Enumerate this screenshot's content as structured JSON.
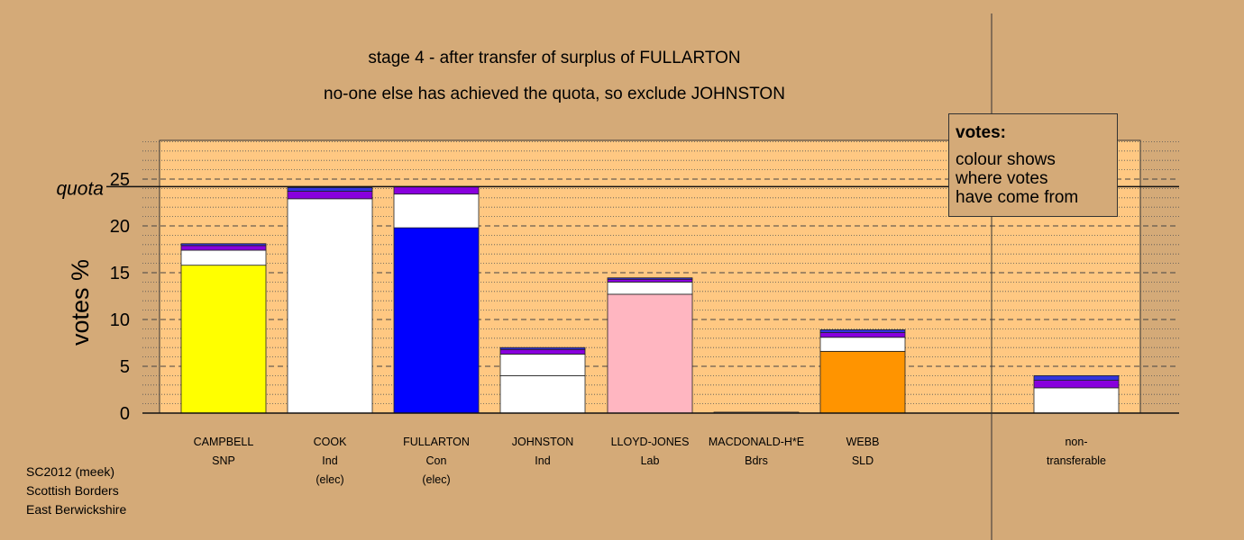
{
  "header": {
    "title": "stage 4 - after transfer of surplus of FULLARTON",
    "subtitle": "no-one else has achieved the quota, so exclude JOHNSTON"
  },
  "legend": {
    "title": "votes:",
    "lines": [
      "colour shows",
      "where votes",
      "have come from"
    ]
  },
  "footer": {
    "lines": [
      "SC2012 (meek)",
      "Scottish Borders",
      "East Berwickshire"
    ]
  },
  "chart_data": {
    "type": "bar",
    "stacked": true,
    "ylabel": "votes %",
    "ylim": [
      0,
      29.5
    ],
    "yticks": [
      0,
      5,
      10,
      15,
      20,
      25
    ],
    "quota": {
      "label": "quota",
      "value": 24.2
    },
    "grid": "dashed horizontal every 5, dotted every 1",
    "legend_position": "top-right",
    "colors": {
      "SNP": "#ffff00",
      "Ind": "#ffffff",
      "Con": "#0000ff",
      "Lab": "#ffb6c1",
      "Bdrs": "#ffffff",
      "SLD": "#ff9400",
      "transfer_white": "#ffffff",
      "transfer_purple": "#8800dd",
      "transfer_blue": "#3333dd",
      "background": "#d4aa78",
      "plot_area": "#ffc882"
    },
    "categories": [
      {
        "name": "CAMPBELL",
        "party": "SNP",
        "note": "",
        "segments": [
          {
            "value": 15.8,
            "color": "#ffff00"
          },
          {
            "value": 1.6,
            "color": "#ffffff"
          },
          {
            "value": 0.5,
            "color": "#8800dd"
          },
          {
            "value": 0.2,
            "color": "#3333dd"
          }
        ]
      },
      {
        "name": "COOK",
        "party": "Ind",
        "note": "(elec)",
        "segments": [
          {
            "value": 22.9,
            "color": "#ffffff"
          },
          {
            "value": 0.8,
            "color": "#8800dd"
          },
          {
            "value": 0.4,
            "color": "#3333dd"
          }
        ]
      },
      {
        "name": "FULLARTON",
        "party": "Con",
        "note": "(elec)",
        "segments": [
          {
            "value": 19.8,
            "color": "#0000ff"
          },
          {
            "value": 3.6,
            "color": "#ffffff"
          },
          {
            "value": 0.8,
            "color": "#8800dd"
          }
        ]
      },
      {
        "name": "JOHNSTON",
        "party": "Ind",
        "note": "",
        "segments": [
          {
            "value": 4.0,
            "color": "#ffffff"
          },
          {
            "value": 2.3,
            "color": "#ffffff"
          },
          {
            "value": 0.5,
            "color": "#8800dd"
          },
          {
            "value": 0.2,
            "color": "#3333dd"
          }
        ]
      },
      {
        "name": "LLOYD-JONES",
        "party": "Lab",
        "note": "",
        "segments": [
          {
            "value": 12.7,
            "color": "#ffb6c1"
          },
          {
            "value": 1.3,
            "color": "#ffffff"
          },
          {
            "value": 0.3,
            "color": "#8800dd"
          },
          {
            "value": 0.15,
            "color": "#3333dd"
          }
        ]
      },
      {
        "name": "MACDONALD-H*E",
        "party": "Bdrs",
        "note": "",
        "segments": [
          {
            "value": 0.1,
            "color": "#ffffff"
          }
        ]
      },
      {
        "name": "WEBB",
        "party": "SLD",
        "note": "",
        "segments": [
          {
            "value": 6.6,
            "color": "#ff9400"
          },
          {
            "value": 1.5,
            "color": "#ffffff"
          },
          {
            "value": 0.5,
            "color": "#8800dd"
          },
          {
            "value": 0.3,
            "color": "#3333dd"
          }
        ]
      },
      {
        "name": "non-",
        "party": "transferable",
        "note": "",
        "segments": [
          {
            "value": 2.7,
            "color": "#ffffff"
          },
          {
            "value": 0.8,
            "color": "#8800dd"
          },
          {
            "value": 0.5,
            "color": "#3333dd"
          }
        ]
      }
    ]
  }
}
